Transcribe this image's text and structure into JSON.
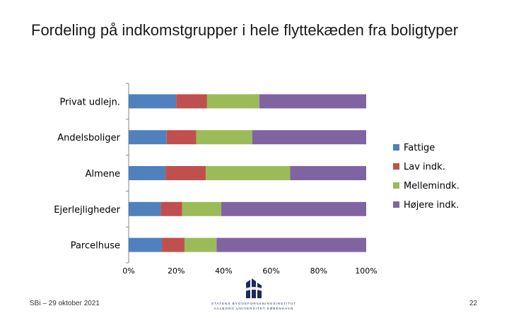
{
  "slide": {
    "title": "Fordeling på indkomstgrupper i hele flyttekæden fra boligtyper",
    "footer": "SBi – 29 oktober 2021",
    "page_number": "22",
    "logo_line1": "STATENS BYGGEFORSKNINGSINSTITUT",
    "logo_line2": "AALBORG UNIVERSITET KØBENHAVN"
  },
  "chart_data": {
    "type": "bar",
    "orientation": "horizontal",
    "stacked": "percent",
    "categories": [
      "Privat udlejn.",
      "Andelsboliger",
      "Almene",
      "Ejerlejligheder",
      "Parcelhuse"
    ],
    "series": [
      {
        "name": "Fattige",
        "color": "#4f81bd",
        "values": [
          20,
          16,
          15.5,
          13.5,
          14
        ]
      },
      {
        "name": "Lav indk.",
        "color": "#c0504d",
        "values": [
          13,
          12.5,
          17,
          9,
          9.5
        ]
      },
      {
        "name": "Mellemindk.",
        "color": "#9bbb59",
        "values": [
          22,
          23.5,
          35.5,
          16.5,
          13.5
        ]
      },
      {
        "name": "Højere indk.",
        "color": "#8064a2",
        "values": [
          45,
          48,
          32,
          61,
          63
        ]
      }
    ],
    "xticks": [
      "0%",
      "20%",
      "40%",
      "60%",
      "80%",
      "100%"
    ],
    "xlim": [
      0,
      100
    ],
    "legend": "right",
    "grid": false
  }
}
